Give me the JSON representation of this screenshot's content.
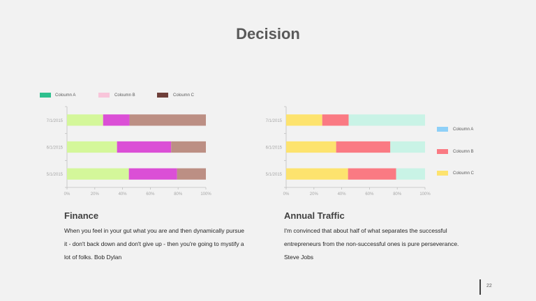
{
  "slide": {
    "title": "Decision",
    "page_number": "22"
  },
  "finance": {
    "title": "Finance",
    "text": "When you feel in your gut what you are and then dynamically pursue it - don't back down and don't give up - then you're going to mystify a lot of folks. Bob Dylan"
  },
  "traffic": {
    "title": "Annual Traffic",
    "text": "I'm convinced that about half of what separates the successful entrepreneurs from the non-successful ones is pure perseverance. Steve Jobs"
  },
  "chart_data": [
    {
      "type": "bar",
      "orientation": "horizontal",
      "stacked": "percent",
      "categories": [
        "7/1/2015",
        "6/1/2015",
        "5/1/2015"
      ],
      "series": [
        {
          "name": "Coloumn A",
          "legend_color": "#2ec08e",
          "bar_color": "#d4f79a",
          "values": [
            26,
            36,
            45
          ]
        },
        {
          "name": "Coloumn B",
          "legend_color": "#f9c5da",
          "bar_color": "#db4fd6",
          "values": [
            19,
            39,
            35
          ]
        },
        {
          "name": "Coloumn C",
          "legend_color": "#6e3f3a",
          "bar_color": "#bc8f84",
          "values": [
            55,
            25,
            21
          ]
        }
      ],
      "x_ticks": [
        "0%",
        "20%",
        "40%",
        "60%",
        "80%",
        "100%"
      ],
      "xlim": [
        0,
        100
      ],
      "legend": "top"
    },
    {
      "type": "bar",
      "orientation": "horizontal",
      "stacked": "percent",
      "categories": [
        "7/1/2015",
        "6/1/2015",
        "5/1/2015"
      ],
      "series": [
        {
          "name": "Coloumn C",
          "legend_color": "#fde36e",
          "bar_color": "#fde36e",
          "values": [
            26,
            36,
            45
          ]
        },
        {
          "name": "Coloumn B",
          "legend_color": "#fa7a83",
          "bar_color": "#fa7a83",
          "values": [
            19,
            39,
            35
          ]
        },
        {
          "name": "Coloumn A",
          "legend_color": "#8ed0f8",
          "bar_color": "#c9f3e6",
          "values": [
            55,
            25,
            21
          ]
        }
      ],
      "legend_order": [
        "Coloumn A",
        "Coloumn B",
        "Coloumn C"
      ],
      "x_ticks": [
        "0%",
        "20%",
        "40%",
        "60%",
        "80%",
        "100%"
      ],
      "xlim": [
        0,
        100
      ],
      "legend": "right"
    }
  ]
}
